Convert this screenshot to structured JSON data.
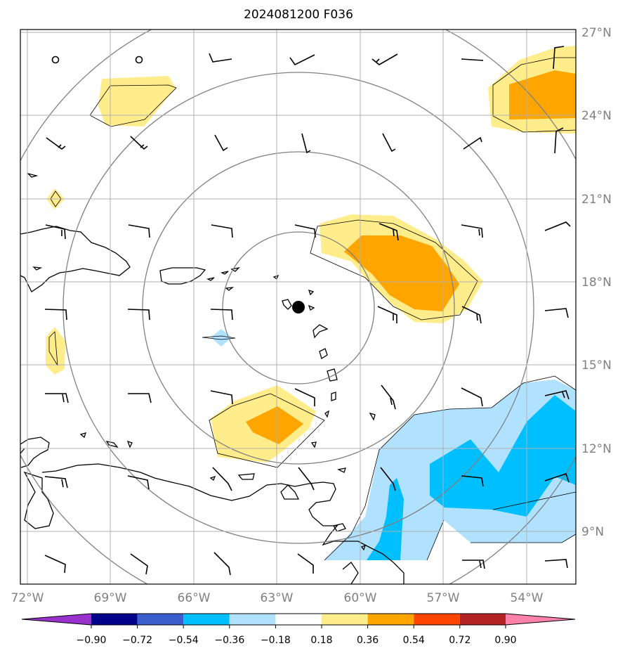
{
  "title": "2024081200 F036",
  "lon_ticks": [
    "72°W",
    "69°W",
    "66°W",
    "63°W",
    "60°W",
    "57°W",
    "54°W"
  ],
  "lat_ticks": [
    "27°N",
    "24°N",
    "21°N",
    "18°N",
    "15°N",
    "12°N",
    "9°N"
  ],
  "colorbar": {
    "labels": [
      "−0.90",
      "−0.72",
      "−0.54",
      "−0.36",
      "−0.18",
      "0.18",
      "0.36",
      "0.54",
      "0.72",
      "0.90"
    ],
    "colors": [
      "#9932cc",
      "#00008b",
      "#3a5fcd",
      "#00bfff",
      "#b0e2ff",
      "#ffffff",
      "#ffec8b",
      "#ffa500",
      "#ff4500",
      "#b22222",
      "#ff82ab"
    ]
  },
  "map": {
    "lon_range": [
      -72.3,
      -52.3
    ],
    "lat_range": [
      7.3,
      27.2
    ],
    "center_marker": {
      "lon": -62.3,
      "lat": 17.1
    },
    "range_ring_color": "#808080",
    "gridline_color": "#b0b0b0"
  }
}
